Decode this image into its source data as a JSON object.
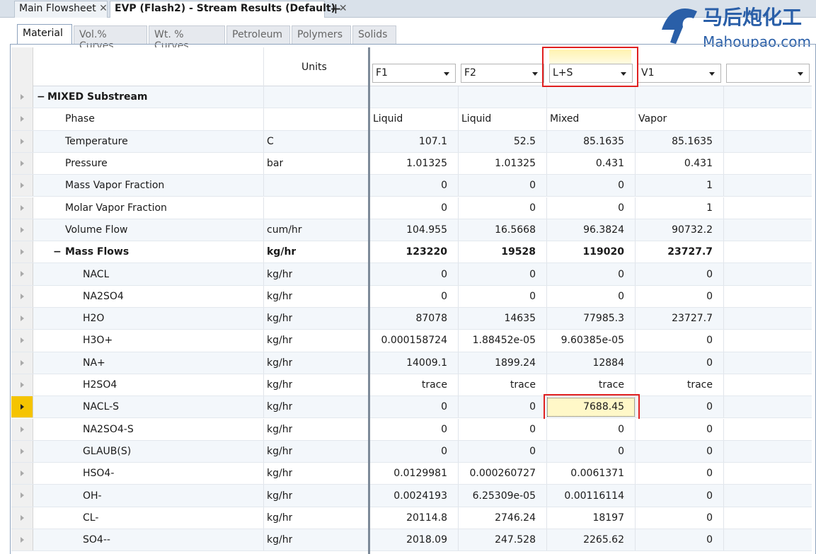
{
  "tabs": [
    {
      "label": "Main Flowsheet"
    },
    {
      "label": "EVP (Flash2) - Stream Results (Default)"
    }
  ],
  "subtabs": [
    "Material",
    "Vol.% Curves",
    "Wt. % Curves",
    "Petroleum",
    "Polymers",
    "Solids"
  ],
  "logo": {
    "name": "马后炮化工",
    "url": "Mahoupao.com"
  },
  "table": {
    "units_header": "Units",
    "streams": [
      "F1",
      "F2",
      "L+S",
      "V1"
    ],
    "sections": [
      {
        "label": "MIXED Substream",
        "rows": [
          {
            "label": "Phase",
            "values": [
              "Liquid",
              "Liquid",
              "Mixed",
              "Vapor"
            ]
          },
          {
            "label": "Temperature",
            "units": "C",
            "values": [
              "107.1",
              "52.5",
              "85.1635",
              "85.1635"
            ]
          },
          {
            "label": "Pressure",
            "units": "bar",
            "values": [
              "1.01325",
              "1.01325",
              "0.431",
              "0.431"
            ]
          },
          {
            "label": "Mass Vapor Fraction",
            "values": [
              "0",
              "0",
              "0",
              "1"
            ]
          },
          {
            "label": "Molar Vapor Fraction",
            "values": [
              "0",
              "0",
              "0",
              "1"
            ]
          },
          {
            "label": "Volume Flow",
            "units": "cum/hr",
            "values": [
              "104.955",
              "16.5668",
              "96.3824",
              "90732.2"
            ]
          },
          {
            "label": "Mass Flows",
            "units": "kg/hr",
            "values": [
              "123220",
              "19528",
              "119020",
              "23727.7"
            ],
            "rows": [
              {
                "label": "NACL",
                "units": "kg/hr",
                "values": [
                  "0",
                  "0",
                  "0",
                  "0"
                ]
              },
              {
                "label": "NA2SO4",
                "units": "kg/hr",
                "values": [
                  "0",
                  "0",
                  "0",
                  "0"
                ]
              },
              {
                "label": "H2O",
                "units": "kg/hr",
                "values": [
                  "87078",
                  "14635",
                  "77985.3",
                  "23727.7"
                ]
              },
              {
                "label": "H3O+",
                "units": "kg/hr",
                "values": [
                  "0.000158724",
                  "1.88452e-05",
                  "9.60385e-05",
                  "0"
                ]
              },
              {
                "label": "NA+",
                "units": "kg/hr",
                "values": [
                  "14009.1",
                  "1899.24",
                  "12884",
                  "0"
                ]
              },
              {
                "label": "H2SO4",
                "units": "kg/hr",
                "values": [
                  "trace",
                  "trace",
                  "trace",
                  "trace"
                ]
              },
              {
                "label": "NACL-S",
                "units": "kg/hr",
                "values": [
                  "0",
                  "0",
                  "7688.45",
                  "0"
                ]
              },
              {
                "label": "NA2SO4-S",
                "units": "kg/hr",
                "values": [
                  "0",
                  "0",
                  "0",
                  "0"
                ]
              },
              {
                "label": "GLAUB(S)",
                "units": "kg/hr",
                "values": [
                  "0",
                  "0",
                  "0",
                  "0"
                ]
              },
              {
                "label": "HSO4-",
                "units": "kg/hr",
                "values": [
                  "0.0129981",
                  "0.000260727",
                  "0.0061371",
                  "0"
                ]
              },
              {
                "label": "OH-",
                "units": "kg/hr",
                "values": [
                  "0.0024193",
                  "6.25309e-05",
                  "0.00116114",
                  "0"
                ]
              },
              {
                "label": "CL-",
                "units": "kg/hr",
                "values": [
                  "20114.8",
                  "2746.24",
                  "18197",
                  "0"
                ]
              },
              {
                "label": "SO4--",
                "units": "kg/hr",
                "values": [
                  "2018.09",
                  "247.528",
                  "2265.62",
                  "0"
                ]
              }
            ]
          }
        ]
      }
    ]
  }
}
